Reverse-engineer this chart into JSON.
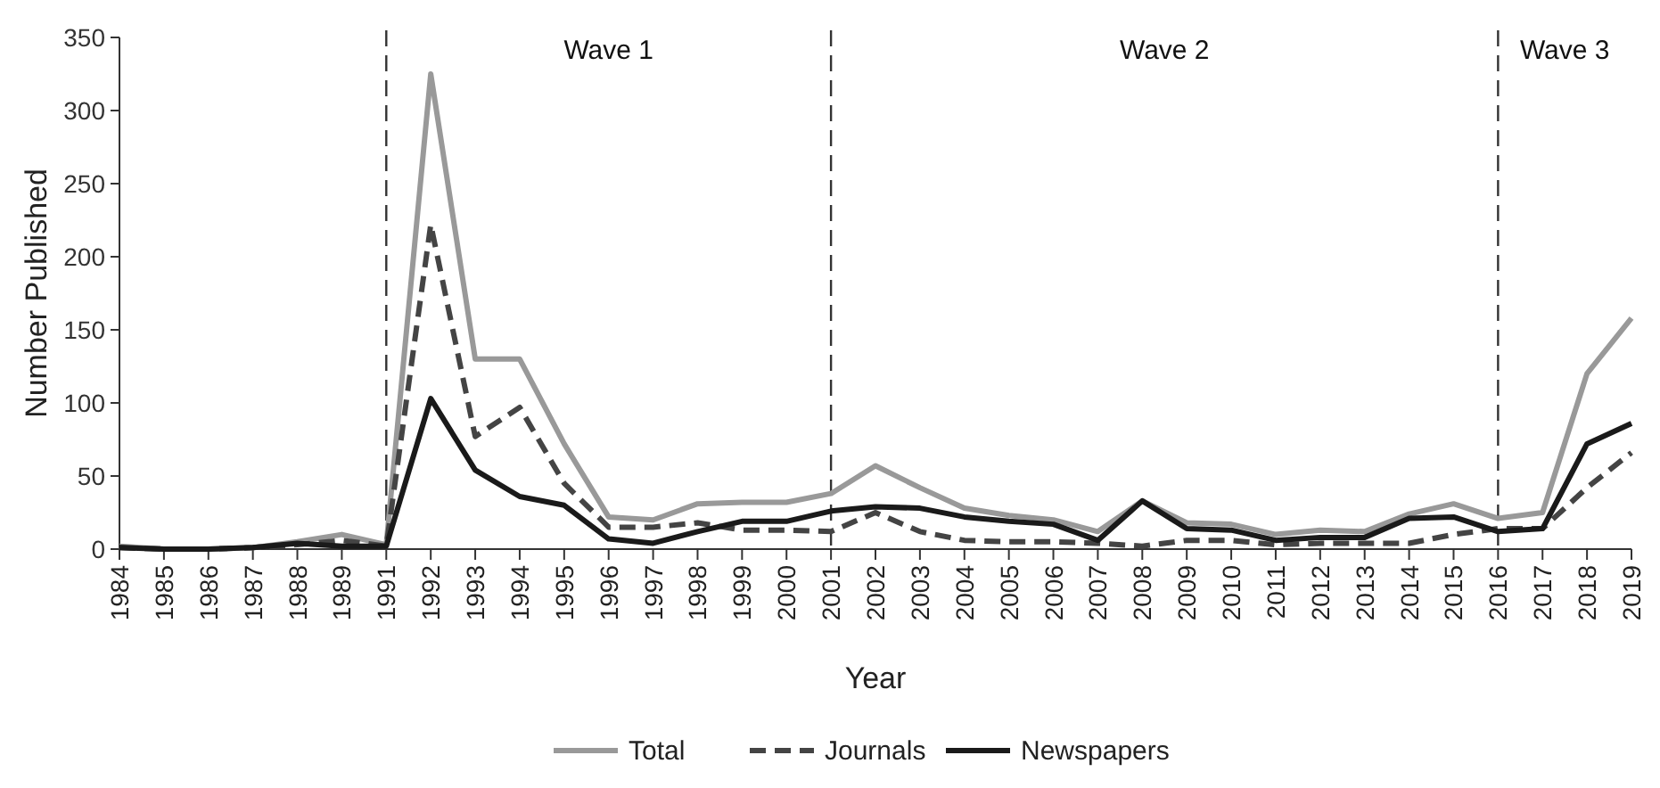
{
  "chart_data": {
    "type": "line",
    "xlabel": "Year",
    "ylabel": "Number Published",
    "categories": [
      "1984",
      "1985",
      "1986",
      "1987",
      "1988",
      "1989",
      "1991",
      "1992",
      "1993",
      "1994",
      "1995",
      "1996",
      "1997",
      "1998",
      "1999",
      "2000",
      "2001",
      "2002",
      "2003",
      "2004",
      "2005",
      "2006",
      "2007",
      "2008",
      "2009",
      "2010",
      "2011",
      "2012",
      "2013",
      "2014",
      "2015",
      "2016",
      "2017",
      "2018",
      "2019"
    ],
    "series": [
      {
        "name": "Total",
        "color": "#999999",
        "line_style": "solid",
        "values": [
          2,
          0,
          0,
          1,
          5,
          10,
          3,
          325,
          130,
          130,
          72,
          22,
          20,
          31,
          32,
          32,
          38,
          57,
          42,
          28,
          23,
          20,
          12,
          33,
          18,
          17,
          10,
          13,
          12,
          24,
          31,
          21,
          25,
          120,
          158
        ]
      },
      {
        "name": "Journals",
        "color": "#444444",
        "line_style": "dashed",
        "values": [
          1,
          0,
          0,
          1,
          3,
          6,
          2,
          222,
          77,
          97,
          45,
          15,
          15,
          18,
          13,
          13,
          12,
          25,
          12,
          6,
          5,
          5,
          4,
          2,
          6,
          6,
          3,
          4,
          4,
          4,
          10,
          14,
          14,
          42,
          66
        ]
      },
      {
        "name": "Newspapers",
        "color": "#1a1a1a",
        "line_style": "solid",
        "values": [
          1,
          0,
          0,
          1,
          4,
          2,
          2,
          103,
          54,
          36,
          30,
          7,
          4,
          12,
          19,
          19,
          26,
          29,
          28,
          22,
          19,
          17,
          6,
          33,
          14,
          13,
          6,
          8,
          8,
          21,
          22,
          12,
          14,
          72,
          86
        ]
      }
    ],
    "ylim": [
      0,
      350
    ],
    "yticks": [
      0,
      50,
      100,
      150,
      200,
      250,
      300,
      350
    ],
    "grid": false,
    "legend": "bottom",
    "ref_lines": [
      {
        "axis": "x",
        "value": "1991",
        "line_style": "dashed",
        "color": "#333333"
      },
      {
        "axis": "x",
        "value": "2001",
        "line_style": "dashed",
        "color": "#333333"
      },
      {
        "axis": "x",
        "value": "2016",
        "line_style": "dashed",
        "color": "#333333"
      }
    ],
    "annotations": [
      "Wave 1",
      "Wave 2",
      "Wave 3"
    ]
  }
}
